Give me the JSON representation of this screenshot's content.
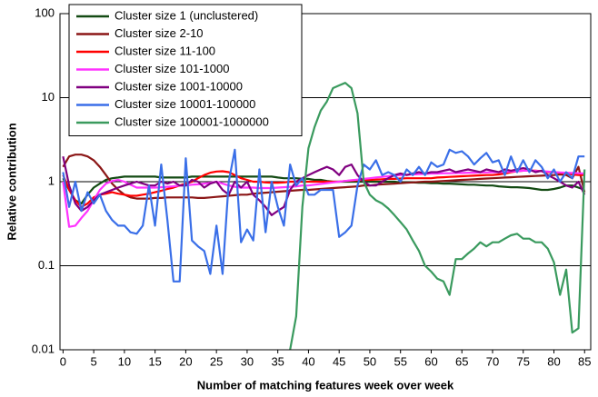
{
  "chart_data": {
    "type": "line",
    "xlabel": "Number of matching features week over week",
    "ylabel": "Relative contribution",
    "log_y": true,
    "grid": true,
    "legend": "upper left",
    "xlim": [
      -0.5,
      86
    ],
    "ylim": [
      0.01,
      100
    ],
    "xticks": [
      0,
      5,
      10,
      15,
      20,
      25,
      30,
      35,
      40,
      45,
      50,
      55,
      60,
      65,
      70,
      75,
      80,
      85
    ],
    "yticks": [
      0.01,
      0.1,
      1,
      10,
      100
    ],
    "x": [
      0,
      1,
      2,
      3,
      4,
      5,
      6,
      7,
      8,
      9,
      10,
      11,
      12,
      13,
      14,
      15,
      16,
      17,
      18,
      19,
      20,
      21,
      22,
      23,
      24,
      25,
      26,
      27,
      28,
      29,
      30,
      31,
      32,
      33,
      34,
      35,
      36,
      37,
      38,
      39,
      40,
      41,
      42,
      43,
      44,
      45,
      46,
      47,
      48,
      49,
      50,
      51,
      52,
      53,
      54,
      55,
      56,
      57,
      58,
      59,
      60,
      61,
      62,
      63,
      64,
      65,
      66,
      67,
      68,
      69,
      70,
      71,
      72,
      73,
      74,
      75,
      76,
      77,
      78,
      79,
      80,
      81,
      82,
      83,
      84,
      85
    ],
    "series": [
      {
        "name": "Cluster size 1 (unclustered)",
        "color": "#134a13",
        "values": [
          1.1,
          0.8,
          0.6,
          0.55,
          0.7,
          0.85,
          0.95,
          1.05,
          1.1,
          1.12,
          1.15,
          1.15,
          1.15,
          1.15,
          1.15,
          1.15,
          1.12,
          1.12,
          1.12,
          1.12,
          1.12,
          1.15,
          1.15,
          1.15,
          1.15,
          1.15,
          1.15,
          1.15,
          1.15,
          1.15,
          1.15,
          1.15,
          1.15,
          1.15,
          1.15,
          1.12,
          1.1,
          1.1,
          1.1,
          1.08,
          1.08,
          1.05,
          1.05,
          1.02,
          1.0,
          1.0,
          1.0,
          1.0,
          1.0,
          1.0,
          1.0,
          1.0,
          1.0,
          1.0,
          1.0,
          0.98,
          0.98,
          0.98,
          0.97,
          0.97,
          0.96,
          0.96,
          0.95,
          0.95,
          0.94,
          0.93,
          0.92,
          0.92,
          0.91,
          0.9,
          0.9,
          0.88,
          0.87,
          0.86,
          0.86,
          0.85,
          0.84,
          0.82,
          0.8,
          0.8,
          0.82,
          0.85,
          0.9,
          0.9,
          0.85,
          0.8
        ]
      },
      {
        "name": "Cluster size 2-10",
        "color": "#8b1616",
        "values": [
          1.5,
          2.0,
          2.1,
          2.1,
          2.0,
          1.8,
          1.5,
          1.2,
          0.95,
          0.8,
          0.7,
          0.65,
          0.63,
          0.63,
          0.63,
          0.64,
          0.64,
          0.65,
          0.65,
          0.65,
          0.65,
          0.65,
          0.64,
          0.64,
          0.65,
          0.66,
          0.67,
          0.68,
          0.69,
          0.7,
          0.7,
          0.72,
          0.73,
          0.74,
          0.75,
          0.76,
          0.77,
          0.78,
          0.79,
          0.8,
          0.8,
          0.81,
          0.82,
          0.83,
          0.84,
          0.85,
          0.86,
          0.87,
          0.88,
          0.9,
          0.9,
          0.92,
          0.93,
          0.94,
          0.95,
          0.96,
          0.97,
          0.98,
          0.99,
          1.0,
          1.0,
          1.01,
          1.02,
          1.03,
          1.04,
          1.05,
          1.06,
          1.07,
          1.08,
          1.09,
          1.1,
          1.11,
          1.12,
          1.13,
          1.14,
          1.15,
          1.16,
          1.17,
          1.18,
          1.19,
          1.2,
          1.22,
          1.2,
          1.1,
          1.5,
          0.75
        ]
      },
      {
        "name": "Cluster size 11-100",
        "color": "#ff0000",
        "values": [
          1.2,
          0.8,
          0.6,
          0.5,
          0.55,
          0.65,
          0.7,
          0.72,
          0.75,
          0.72,
          0.7,
          0.68,
          0.68,
          0.7,
          0.72,
          0.75,
          0.78,
          0.82,
          0.85,
          0.9,
          0.95,
          1.0,
          1.1,
          1.2,
          1.28,
          1.32,
          1.33,
          1.3,
          1.2,
          1.1,
          1.05,
          1.0,
          1.0,
          0.98,
          0.97,
          0.97,
          0.98,
          1.0,
          1.0,
          1.0,
          1.0,
          1.0,
          1.0,
          1.0,
          1.0,
          1.0,
          1.02,
          1.03,
          1.04,
          1.05,
          1.05,
          1.06,
          1.07,
          1.08,
          1.08,
          1.09,
          1.1,
          1.1,
          1.1,
          1.1,
          1.1,
          1.12,
          1.13,
          1.14,
          1.15,
          1.16,
          1.17,
          1.18,
          1.19,
          1.2,
          1.2,
          1.22,
          1.25,
          1.3,
          1.33,
          1.35,
          1.35,
          1.35,
          1.33,
          1.3,
          1.3,
          1.28,
          1.25,
          1.22,
          1.2,
          1.2
        ]
      },
      {
        "name": "Cluster size 101-1000",
        "color": "#ff33ff",
        "values": [
          1.0,
          0.29,
          0.3,
          0.37,
          0.45,
          0.6,
          0.8,
          0.95,
          1.02,
          1.05,
          1.0,
          0.92,
          0.85,
          0.85,
          0.85,
          0.85,
          0.86,
          0.87,
          0.88,
          0.9,
          0.9,
          0.92,
          0.93,
          0.95,
          0.97,
          1.0,
          0.95,
          0.9,
          0.87,
          0.85,
          0.85,
          0.85,
          0.84,
          0.84,
          0.84,
          0.85,
          0.86,
          0.87,
          0.88,
          0.9,
          0.9,
          0.92,
          0.94,
          0.96,
          0.98,
          1.0,
          1.02,
          1.04,
          1.06,
          1.08,
          1.1,
          1.12,
          1.14,
          1.16,
          1.18,
          1.2,
          1.21,
          1.22,
          1.23,
          1.24,
          1.25,
          1.25,
          1.26,
          1.26,
          1.27,
          1.27,
          1.28,
          1.28,
          1.29,
          1.29,
          1.3,
          1.3,
          1.31,
          1.32,
          1.33,
          1.35,
          1.35,
          1.34,
          1.33,
          1.32,
          1.3,
          1.29,
          1.28,
          1.27,
          1.26,
          1.25
        ]
      },
      {
        "name": "Cluster size 1001-10000",
        "color": "#800080",
        "values": [
          2.0,
          0.9,
          0.55,
          0.45,
          0.5,
          0.6,
          0.7,
          0.75,
          0.8,
          0.85,
          0.9,
          0.95,
          1.0,
          0.95,
          0.9,
          0.9,
          1.0,
          0.95,
          1.0,
          0.9,
          0.9,
          1.05,
          1.0,
          0.85,
          0.95,
          1.0,
          0.8,
          0.7,
          1.0,
          0.85,
          1.0,
          0.7,
          0.6,
          0.5,
          0.4,
          0.45,
          0.5,
          0.8,
          1.0,
          1.1,
          1.2,
          1.3,
          1.4,
          1.5,
          1.4,
          1.2,
          1.5,
          1.6,
          1.2,
          1.0,
          0.9,
          0.9,
          1.0,
          1.1,
          1.2,
          1.25,
          1.2,
          1.25,
          1.3,
          1.25,
          1.3,
          1.3,
          1.35,
          1.4,
          1.3,
          1.35,
          1.4,
          1.35,
          1.3,
          1.4,
          1.35,
          1.3,
          1.4,
          1.35,
          1.4,
          1.45,
          1.4,
          1.3,
          1.35,
          1.2,
          1.1,
          1.0,
          0.9,
          0.85,
          1.0,
          0.7
        ]
      },
      {
        "name": "Cluster size 10001-100000",
        "color": "#3a6fe8",
        "values": [
          1.3,
          0.5,
          1.0,
          0.45,
          0.75,
          0.55,
          0.7,
          0.45,
          0.35,
          0.3,
          0.3,
          0.25,
          0.24,
          0.3,
          0.9,
          0.3,
          1.6,
          0.35,
          0.065,
          0.065,
          1.9,
          0.2,
          0.17,
          0.15,
          0.08,
          0.3,
          0.08,
          1.0,
          2.4,
          0.19,
          0.27,
          0.2,
          1.4,
          0.25,
          1.0,
          0.5,
          0.3,
          1.6,
          0.9,
          1.1,
          0.7,
          0.7,
          0.8,
          0.8,
          0.8,
          0.22,
          0.25,
          0.3,
          0.9,
          1.6,
          1.4,
          1.8,
          1.2,
          1.3,
          1.2,
          1.0,
          1.4,
          1.2,
          1.5,
          1.2,
          1.7,
          1.5,
          1.6,
          2.4,
          2.2,
          2.3,
          2.0,
          1.6,
          1.9,
          2.2,
          1.7,
          1.8,
          1.2,
          2.0,
          1.3,
          1.8,
          1.3,
          1.8,
          1.5,
          1.1,
          1.4,
          1.0,
          1.3,
          1.1,
          2.0,
          2.0
        ]
      },
      {
        "name": "Cluster size 100001-1000000",
        "color": "#3a9a5e",
        "values": [
          null,
          null,
          null,
          null,
          null,
          null,
          null,
          null,
          null,
          null,
          null,
          null,
          null,
          null,
          null,
          null,
          null,
          null,
          null,
          null,
          null,
          null,
          null,
          null,
          null,
          null,
          null,
          null,
          null,
          null,
          null,
          null,
          null,
          null,
          null,
          null,
          null,
          0.01,
          0.025,
          0.5,
          2.5,
          4.5,
          7,
          9,
          13,
          14,
          15,
          13,
          6.5,
          1.0,
          0.7,
          0.6,
          0.55,
          0.48,
          0.4,
          0.33,
          0.27,
          0.2,
          0.15,
          0.1,
          0.085,
          0.07,
          0.065,
          0.045,
          0.12,
          0.12,
          0.14,
          0.16,
          0.19,
          0.17,
          0.19,
          0.19,
          0.21,
          0.23,
          0.24,
          0.21,
          0.21,
          0.19,
          0.19,
          0.16,
          0.11,
          0.045,
          0.09,
          0.016,
          0.018,
          1.4
        ]
      }
    ]
  }
}
